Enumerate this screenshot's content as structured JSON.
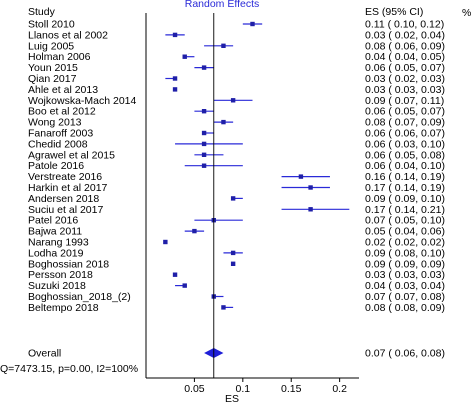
{
  "chart_data": {
    "type": "forest",
    "title": "Random Effects",
    "column_headers": {
      "study": "Study",
      "es": "ES (95% CI)",
      "pct": "%"
    },
    "xlabel": "ES",
    "xlim": [
      0,
      0.22
    ],
    "xticks": [
      0.05,
      0.1,
      0.15,
      0.2
    ],
    "xtick_labels": [
      "0.05",
      "0.1",
      "0.15",
      "0.2"
    ],
    "reference_line": 0.07,
    "studies": [
      {
        "name": "Stoll 2010",
        "es": 0.11,
        "lo": 0.1,
        "hi": 0.12,
        "label": "0.11  ( 0.10, 0.12)"
      },
      {
        "name": "Llanos et al 2002",
        "es": 0.03,
        "lo": 0.02,
        "hi": 0.04,
        "label": "0.03  ( 0.02, 0.04)"
      },
      {
        "name": "Luig 2005",
        "es": 0.08,
        "lo": 0.06,
        "hi": 0.09,
        "label": "0.08  ( 0.06, 0.09)"
      },
      {
        "name": "Holman 2006",
        "es": 0.04,
        "lo": 0.04,
        "hi": 0.05,
        "label": "0.04  ( 0.04, 0.05)"
      },
      {
        "name": "Youn 2015",
        "es": 0.06,
        "lo": 0.05,
        "hi": 0.07,
        "label": "0.06  ( 0.05, 0.07)"
      },
      {
        "name": "Qian 2017",
        "es": 0.03,
        "lo": 0.02,
        "hi": 0.03,
        "label": "0.03  ( 0.02, 0.03)"
      },
      {
        "name": "Ahle et al 2013",
        "es": 0.03,
        "lo": 0.03,
        "hi": 0.03,
        "label": "0.03  ( 0.03, 0.03)"
      },
      {
        "name": "Wojkowska-Mach 2014",
        "es": 0.09,
        "lo": 0.07,
        "hi": 0.11,
        "label": "0.09  ( 0.07, 0.11)"
      },
      {
        "name": "Boo et al 2012",
        "es": 0.06,
        "lo": 0.05,
        "hi": 0.07,
        "label": "0.06  ( 0.05, 0.07)"
      },
      {
        "name": "Wong 2013",
        "es": 0.08,
        "lo": 0.07,
        "hi": 0.09,
        "label": "0.08  ( 0.07, 0.09)"
      },
      {
        "name": "Fanaroff 2003",
        "es": 0.06,
        "lo": 0.06,
        "hi": 0.07,
        "label": "0.06  ( 0.06, 0.07)"
      },
      {
        "name": "Chedid 2008",
        "es": 0.06,
        "lo": 0.03,
        "hi": 0.1,
        "label": "0.06  ( 0.03, 0.10)"
      },
      {
        "name": "Agrawel et al 2015",
        "es": 0.06,
        "lo": 0.05,
        "hi": 0.08,
        "label": "0.06  ( 0.05, 0.08)"
      },
      {
        "name": "Patole 2016",
        "es": 0.06,
        "lo": 0.04,
        "hi": 0.1,
        "label": "0.06  ( 0.04, 0.10)"
      },
      {
        "name": "Verstreate  2016",
        "es": 0.16,
        "lo": 0.14,
        "hi": 0.19,
        "label": "0.16  ( 0.14, 0.19)"
      },
      {
        "name": "Harkin et al 2017",
        "es": 0.17,
        "lo": 0.14,
        "hi": 0.19,
        "label": "0.17  ( 0.14, 0.19)"
      },
      {
        "name": "Andersen 2018",
        "es": 0.09,
        "lo": 0.09,
        "hi": 0.1,
        "label": "0.09  ( 0.09, 0.10)"
      },
      {
        "name": "Suciu et al 2017",
        "es": 0.17,
        "lo": 0.14,
        "hi": 0.21,
        "label": "0.17  ( 0.14, 0.21)"
      },
      {
        "name": "Patel 2016",
        "es": 0.07,
        "lo": 0.05,
        "hi": 0.1,
        "label": "0.07  ( 0.05, 0.10)"
      },
      {
        "name": "Bajwa 2011",
        "es": 0.05,
        "lo": 0.04,
        "hi": 0.06,
        "label": "0.05  ( 0.04, 0.06)"
      },
      {
        "name": "Narang 1993",
        "es": 0.02,
        "lo": 0.02,
        "hi": 0.02,
        "label": "0.02  ( 0.02, 0.02)"
      },
      {
        "name": "Lodha 2019",
        "es": 0.09,
        "lo": 0.08,
        "hi": 0.1,
        "label": "0.09  ( 0.08, 0.10)"
      },
      {
        "name": "Boghossian 2018",
        "es": 0.09,
        "lo": 0.09,
        "hi": 0.09,
        "label": "0.09  ( 0.09, 0.09)"
      },
      {
        "name": "Persson 2018",
        "es": 0.03,
        "lo": 0.03,
        "hi": 0.03,
        "label": "0.03  ( 0.03, 0.03)"
      },
      {
        "name": "Suzuki 2018",
        "es": 0.04,
        "lo": 0.03,
        "hi": 0.04,
        "label": "0.04  ( 0.03, 0.04)"
      },
      {
        "name": "Boghossian_2018_(2)",
        "es": 0.07,
        "lo": 0.07,
        "hi": 0.08,
        "label": "0.07  ( 0.07, 0.08)"
      },
      {
        "name": "Beltempo 2018",
        "es": 0.08,
        "lo": 0.08,
        "hi": 0.09,
        "label": "0.08  ( 0.08, 0.09)"
      }
    ],
    "overall": {
      "name": "Overall",
      "es": 0.07,
      "lo": 0.06,
      "hi": 0.08,
      "label": "0.07  ( 0.06, 0.08)"
    },
    "heterogeneity": "Q=7473.15, p=0.00, I2=100%",
    "colors": {
      "marker": "#1f1fa8",
      "ci_line": "#2a2ad8",
      "title": "#2a2ad8"
    }
  }
}
